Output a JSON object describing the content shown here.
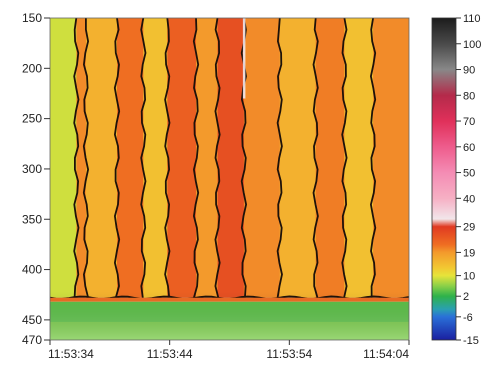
{
  "chart_data": {
    "type": "heatmap",
    "title": "",
    "xlabel": "",
    "ylabel": "",
    "x_tick_labels": [
      "11:53:34",
      "11:53:44",
      "11:53:54",
      "11:54:04"
    ],
    "x_ticks_seconds": [
      0,
      10,
      20,
      30
    ],
    "xlim_seconds": [
      0,
      30
    ],
    "y_tick_labels": [
      "150",
      "200",
      "250",
      "300",
      "350",
      "400",
      "450",
      "470"
    ],
    "y_ticks": [
      150,
      200,
      250,
      300,
      350,
      400,
      450,
      470
    ],
    "ylim": [
      150,
      470
    ],
    "y_inverted": true,
    "colorbar": {
      "labels": [
        "110",
        "100",
        "90",
        "80",
        "70",
        "60",
        "50",
        "40",
        "29",
        "19",
        "10",
        "2",
        "-6",
        "-15"
      ],
      "values": [
        110,
        100,
        90,
        80,
        70,
        60,
        50,
        40,
        29,
        19,
        10,
        2,
        -6,
        -15
      ],
      "range": [
        -15,
        110
      ],
      "stops": [
        {
          "v": 110,
          "color": "#1c1c1c"
        },
        {
          "v": 100,
          "color": "#4a4a4a"
        },
        {
          "v": 90,
          "color": "#888888"
        },
        {
          "v": 80,
          "color": "#b42a4a"
        },
        {
          "v": 70,
          "color": "#e0305a"
        },
        {
          "v": 60,
          "color": "#ee5c8c"
        },
        {
          "v": 50,
          "color": "#f48cb4"
        },
        {
          "v": 40,
          "color": "#f6b0c4"
        },
        {
          "v": 32,
          "color": "#f2e6ea"
        },
        {
          "v": 29,
          "color": "#e03a22"
        },
        {
          "v": 22,
          "color": "#ef6e22"
        },
        {
          "v": 19,
          "color": "#f39a2c"
        },
        {
          "v": 13,
          "color": "#f2c832"
        },
        {
          "v": 10,
          "color": "#e6e43a"
        },
        {
          "v": 6,
          "color": "#8bd048"
        },
        {
          "v": 2,
          "color": "#2fb24a"
        },
        {
          "v": -3,
          "color": "#2aa0b0"
        },
        {
          "v": -6,
          "color": "#2a70d8"
        },
        {
          "v": -15,
          "color": "#1a1fa0"
        }
      ]
    },
    "description_columns_seconds": [
      {
        "from": 0.0,
        "to": 2.2,
        "value": 9
      },
      {
        "from": 2.2,
        "to": 3.0,
        "value": 20
      },
      {
        "from": 3.0,
        "to": 5.6,
        "value": 16
      },
      {
        "from": 5.6,
        "to": 7.8,
        "value": 22
      },
      {
        "from": 7.8,
        "to": 9.8,
        "value": 14
      },
      {
        "from": 9.8,
        "to": 12.2,
        "value": 24
      },
      {
        "from": 12.2,
        "to": 14.0,
        "value": 19
      },
      {
        "from": 14.0,
        "to": 16.2,
        "value": 26
      },
      {
        "from": 16.2,
        "to": 19.2,
        "value": 20
      },
      {
        "from": 19.2,
        "to": 22.2,
        "value": 16
      },
      {
        "from": 22.2,
        "to": 24.6,
        "value": 21
      },
      {
        "from": 24.6,
        "to": 27.0,
        "value": 14
      },
      {
        "from": 27.0,
        "to": 30.0,
        "value": 20
      }
    ],
    "grid": false,
    "legend": "colorbar-right"
  }
}
